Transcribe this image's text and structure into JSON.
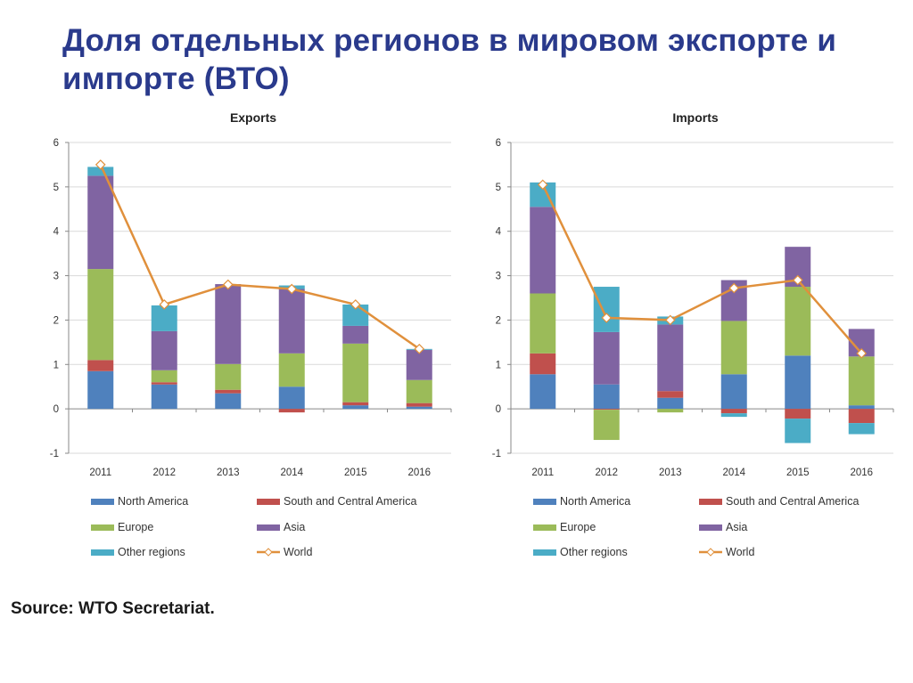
{
  "slide": {
    "title": "Доля отдельных регионов в мировом экспорте и импорте (ВТО)",
    "source": "Source: WTO Secretariat."
  },
  "colors": {
    "North America": "#4f81bd",
    "South and Central America": "#c0504d",
    "Europe": "#9bbb59",
    "Asia": "#8064a2",
    "Other regions": "#4bacc6",
    "World": "#e0903c"
  },
  "chart_data": [
    {
      "type": "bar",
      "stacked": true,
      "title": "Exports",
      "categories": [
        "2011",
        "2012",
        "2013",
        "2014",
        "2015",
        "2016"
      ],
      "ylim": [
        -1,
        6
      ],
      "yticks": [
        "-1",
        "0",
        "1",
        "2",
        "3",
        "4",
        "5",
        "6"
      ],
      "grid": true,
      "series": [
        {
          "name": "North America",
          "values": [
            0.85,
            0.55,
            0.35,
            0.5,
            0.08,
            0.05
          ]
        },
        {
          "name": "South and Central America",
          "values": [
            0.25,
            0.05,
            0.08,
            -0.08,
            0.07,
            0.08
          ]
        },
        {
          "name": "Europe",
          "values": [
            2.05,
            0.27,
            0.58,
            0.75,
            1.32,
            0.52
          ]
        },
        {
          "name": "Asia",
          "values": [
            2.1,
            0.88,
            1.8,
            1.45,
            0.4,
            0.68
          ]
        },
        {
          "name": "Other regions",
          "values": [
            0.2,
            0.58,
            0.0,
            0.08,
            0.48,
            0.02
          ]
        }
      ],
      "line": {
        "name": "World",
        "values": [
          5.5,
          2.35,
          2.8,
          2.7,
          2.35,
          1.35
        ]
      },
      "legend": [
        "North America",
        "South and Central America",
        "Europe",
        "Asia",
        "Other regions",
        "World"
      ]
    },
    {
      "type": "bar",
      "stacked": true,
      "title": "Imports",
      "categories": [
        "2011",
        "2012",
        "2013",
        "2014",
        "2015",
        "2016"
      ],
      "ylim": [
        -1,
        6
      ],
      "yticks": [
        "-1",
        "0",
        "1",
        "2",
        "3",
        "4",
        "5",
        "6"
      ],
      "grid": true,
      "series": [
        {
          "name": "North America",
          "values": [
            0.78,
            0.55,
            0.25,
            0.78,
            1.2,
            0.08
          ]
        },
        {
          "name": "South and Central America",
          "values": [
            0.47,
            -0.02,
            0.15,
            -0.1,
            -0.22,
            -0.32
          ]
        },
        {
          "name": "Europe",
          "values": [
            1.35,
            -0.68,
            -0.08,
            1.2,
            1.55,
            1.1
          ]
        },
        {
          "name": "Asia",
          "values": [
            1.95,
            1.18,
            1.5,
            0.92,
            0.9,
            0.62
          ]
        },
        {
          "name": "Other regions",
          "values": [
            0.55,
            1.02,
            0.18,
            -0.08,
            -0.55,
            -0.25
          ]
        }
      ],
      "line": {
        "name": "World",
        "values": [
          5.05,
          2.05,
          2.0,
          2.72,
          2.9,
          1.25
        ]
      },
      "legend": [
        "North America",
        "South and Central America",
        "Europe",
        "Asia",
        "Other regions",
        "World"
      ]
    }
  ]
}
